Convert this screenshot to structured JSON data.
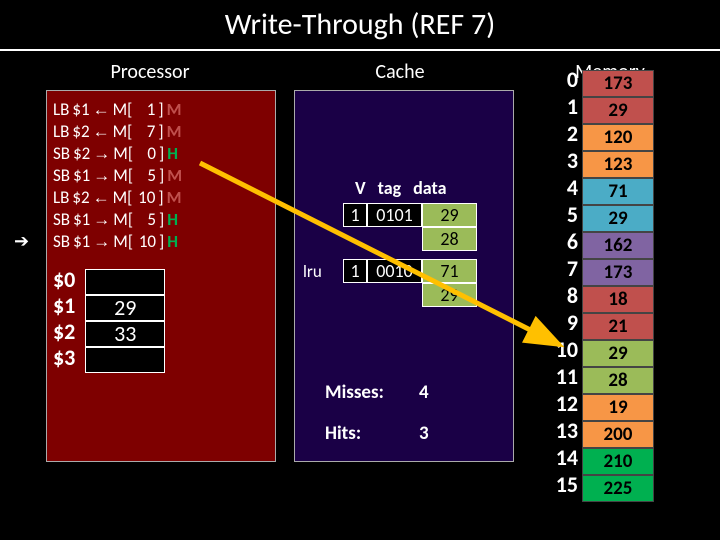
{
  "title": "Write-Through (REF 7)",
  "labels": {
    "processor": "Processor",
    "cache": "Cache",
    "memory": "Memory"
  },
  "pointer_row": 6,
  "instructions": [
    {
      "op": "LB",
      "reg": "$1",
      "dir": "←",
      "addr": "1",
      "hm": "M"
    },
    {
      "op": "LB",
      "reg": "$2",
      "dir": "←",
      "addr": "7",
      "hm": "M"
    },
    {
      "op": "SB",
      "reg": "$2",
      "dir": "→",
      "addr": "0",
      "hm": "H"
    },
    {
      "op": "SB",
      "reg": "$1",
      "dir": "→",
      "addr": "5",
      "hm": "M"
    },
    {
      "op": "LB",
      "reg": "$2",
      "dir": "←",
      "addr": "10",
      "hm": "M"
    },
    {
      "op": "SB",
      "reg": "$1",
      "dir": "→",
      "addr": "5",
      "hm": "H"
    },
    {
      "op": "SB",
      "reg": "$1",
      "dir": "→",
      "addr": "10",
      "hm": "H"
    }
  ],
  "registers": {
    "names": [
      "$0",
      "$1",
      "$2",
      "$3"
    ],
    "values": [
      "",
      "29",
      "33",
      ""
    ]
  },
  "cache": {
    "headers": [
      "V",
      "tag",
      "data"
    ],
    "lru_label": "lru",
    "lines": [
      {
        "lru": false,
        "v": "1",
        "tag": "0101",
        "data": [
          "29",
          "28"
        ]
      },
      {
        "lru": true,
        "v": "1",
        "tag": "0010",
        "data": [
          "71",
          "29"
        ]
      }
    ],
    "stats": {
      "misses_label": "Misses:",
      "misses": "4",
      "hits_label": "Hits:",
      "hits": "3"
    }
  },
  "memory": {
    "indices": [
      "0",
      "1",
      "2",
      "3",
      "4",
      "5",
      "6",
      "7",
      "8",
      "9",
      "10",
      "11",
      "12",
      "13",
      "14",
      "15"
    ],
    "cells": [
      {
        "v": "173",
        "c": "#c0504d"
      },
      {
        "v": "29",
        "c": "#c0504d"
      },
      {
        "v": "120",
        "c": "#f79646"
      },
      {
        "v": "123",
        "c": "#f79646"
      },
      {
        "v": "71",
        "c": "#4bacc6"
      },
      {
        "v": "29",
        "c": "#4bacc6"
      },
      {
        "v": "162",
        "c": "#8064a2"
      },
      {
        "v": "173",
        "c": "#8064a2"
      },
      {
        "v": "18",
        "c": "#c0504d"
      },
      {
        "v": "21",
        "c": "#c0504d"
      },
      {
        "v": "29",
        "c": "#9bbb59"
      },
      {
        "v": "28",
        "c": "#9bbb59"
      },
      {
        "v": "19",
        "c": "#f79646"
      },
      {
        "v": "200",
        "c": "#f79646"
      },
      {
        "v": "210",
        "c": "#00b050"
      },
      {
        "v": "225",
        "c": "#00b050"
      }
    ]
  }
}
